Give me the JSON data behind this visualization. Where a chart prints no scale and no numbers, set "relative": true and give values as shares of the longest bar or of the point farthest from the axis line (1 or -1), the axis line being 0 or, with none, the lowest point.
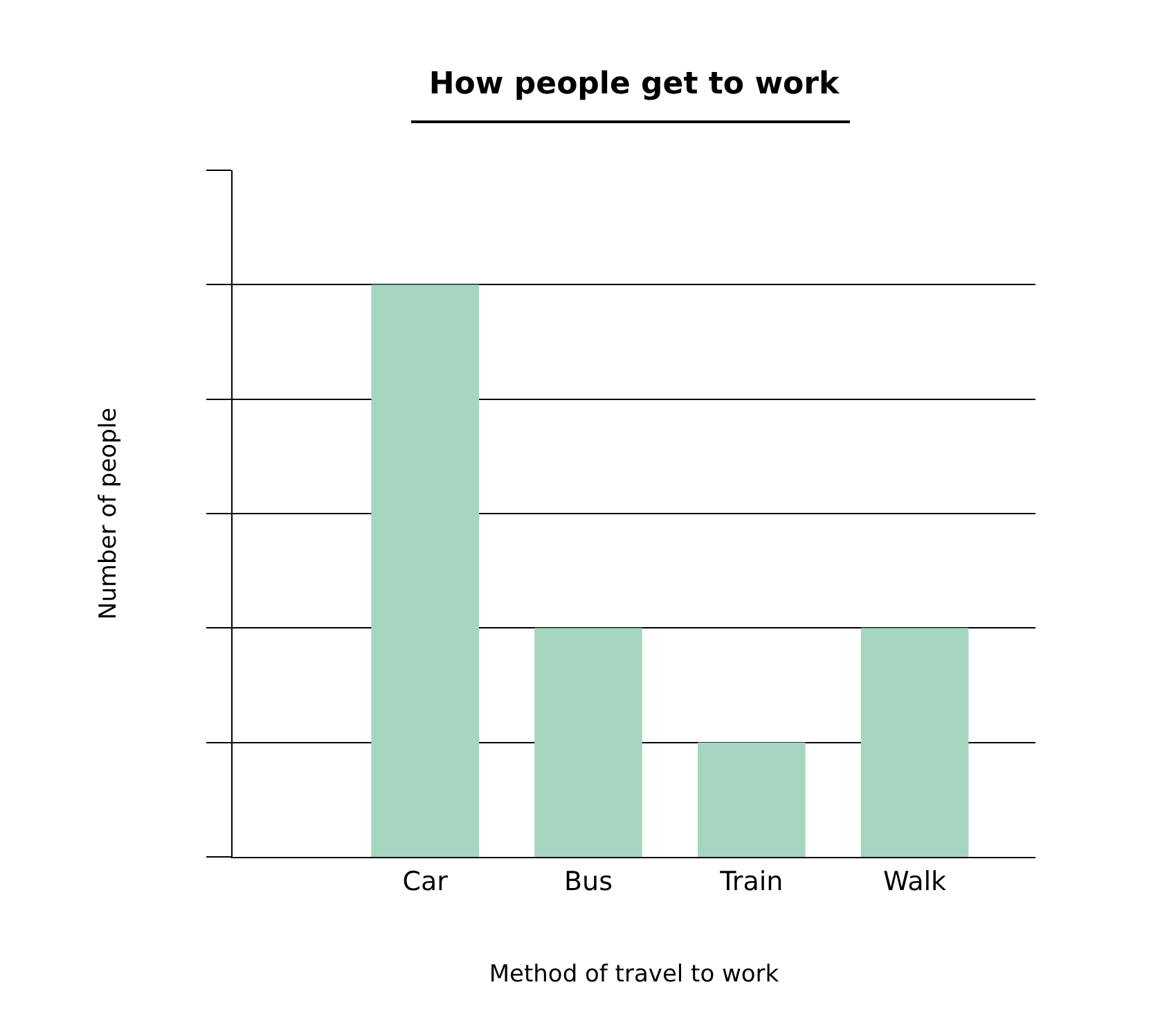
{
  "chart_data": {
    "type": "bar",
    "title": "How people get to work",
    "xlabel": "Method of travel to work",
    "ylabel": "Number of people",
    "categories": [
      "Car",
      "Bus",
      "Train",
      "Walk"
    ],
    "values": [
      1,
      0.4,
      0.2,
      0.4
    ],
    "color": "#a5d6bf",
    "relative": true,
    "grid": "y",
    "legend": false
  }
}
